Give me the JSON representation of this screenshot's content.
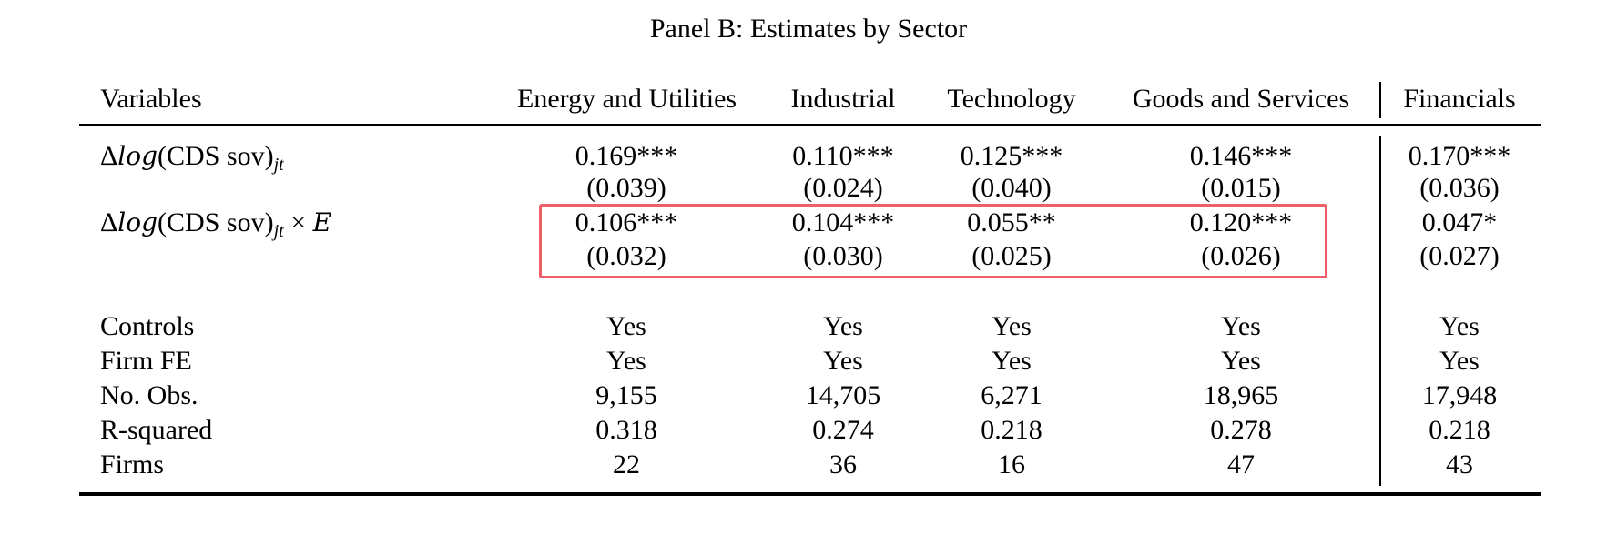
{
  "title": "Panel B: Estimates by Sector",
  "header": {
    "variables": "Variables",
    "columns": [
      "Energy and Utilities",
      "Industrial",
      "Technology",
      "Goods and Services",
      "Financials"
    ]
  },
  "rows": {
    "cds": {
      "label_prefix": "Δ",
      "label_log": "log",
      "label_mid": "(CDS sov)",
      "label_sub": "jt",
      "coef": [
        "0.169***",
        "0.110***",
        "0.125***",
        "0.146***",
        "0.170***"
      ],
      "se": [
        "(0.039)",
        "(0.024)",
        "(0.040)",
        "(0.015)",
        "(0.036)"
      ]
    },
    "cds_e": {
      "label_prefix": "Δ",
      "label_log": "log",
      "label_mid": "(CDS sov)",
      "label_sub": "jt",
      "label_suffix": " × ",
      "label_var": "E",
      "coef": [
        "0.106***",
        "0.104***",
        "0.055**",
        "0.120***",
        "0.047*"
      ],
      "se": [
        "(0.032)",
        "(0.030)",
        "(0.025)",
        "(0.026)",
        "(0.027)"
      ]
    },
    "controls": {
      "label": "Controls",
      "values": [
        "Yes",
        "Yes",
        "Yes",
        "Yes",
        "Yes"
      ]
    },
    "firm_fe": {
      "label": "Firm FE",
      "values": [
        "Yes",
        "Yes",
        "Yes",
        "Yes",
        "Yes"
      ]
    },
    "obs": {
      "label": "No. Obs.",
      "values": [
        "9,155",
        "14,705",
        "6,271",
        "18,965",
        "17,948"
      ]
    },
    "r2": {
      "label": "R-squared",
      "values": [
        "0.318",
        "0.274",
        "0.218",
        "0.278",
        "0.218"
      ]
    },
    "firms": {
      "label": "Firms",
      "values": [
        "22",
        "36",
        "16",
        "47",
        "43"
      ]
    }
  },
  "colors": {
    "highlight_box": "#ef5f6a",
    "text": "#000000"
  }
}
